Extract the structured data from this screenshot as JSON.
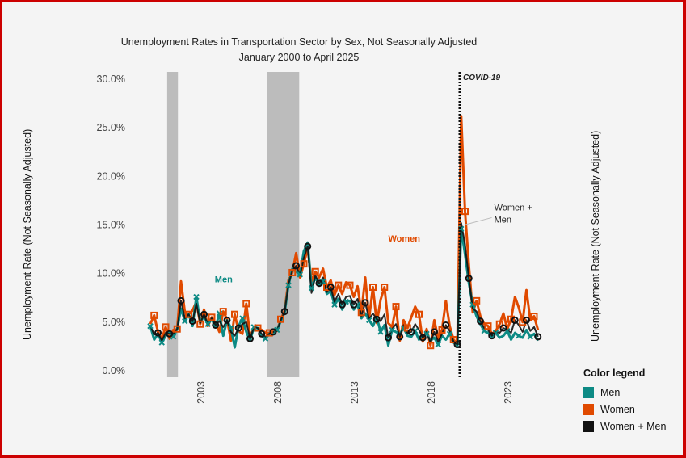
{
  "chart_data": {
    "type": "line",
    "title": "Unemployment Rates in Transportation Sector by Sex, Not Seasonally Adjusted",
    "subtitle": "January 2000 to April 2025",
    "xlabel": "",
    "ylabel": "Unemployment Rate (Not Seasonally Adjusted)",
    "ylabel_right": "Unemployment Rate (Not Seasonally Adjusted)",
    "ylim": [
      0,
      30
    ],
    "xlim": [
      2000,
      2025.33
    ],
    "y_ticks": [
      "0.0%",
      "5.0%",
      "10.0%",
      "15.0%",
      "20.0%",
      "25.0%",
      "30.0%"
    ],
    "y_tick_values": [
      0,
      5,
      10,
      15,
      20,
      25,
      30
    ],
    "x_ticks": [
      "2003",
      "2008",
      "2013",
      "2018",
      "2023"
    ],
    "x_tick_values": [
      2003,
      2008,
      2013,
      2018,
      2023
    ],
    "grid": false,
    "legend_title": "Color legend",
    "legend_position": "bottom-right",
    "recessions": [
      {
        "start": 2001.1,
        "end": 2001.8
      },
      {
        "start": 2007.6,
        "end": 2009.7
      }
    ],
    "annotations": [
      {
        "text": "COVID-19",
        "x": 2020.0,
        "type": "vertical-dotted-line"
      },
      {
        "text": "Men",
        "x": 2004.2,
        "y": 9.1,
        "color": "#0d8a84"
      },
      {
        "text": "Women",
        "x": 2015.5,
        "y": 13.3,
        "color": "#e04a00"
      },
      {
        "text": "Women +\nMen",
        "x": 2022.4,
        "y": 16.5,
        "color": "#222222",
        "pointer_to": {
          "x": 2020.3,
          "y": 15.2
        }
      }
    ],
    "x": [
      2000.0,
      2000.25,
      2000.5,
      2000.75,
      2001.0,
      2001.25,
      2001.5,
      2001.75,
      2002.0,
      2002.25,
      2002.5,
      2002.75,
      2003.0,
      2003.25,
      2003.5,
      2003.75,
      2004.0,
      2004.25,
      2004.5,
      2004.75,
      2005.0,
      2005.25,
      2005.5,
      2005.75,
      2006.0,
      2006.25,
      2006.5,
      2006.75,
      2007.0,
      2007.25,
      2007.5,
      2007.75,
      2008.0,
      2008.25,
      2008.5,
      2008.75,
      2009.0,
      2009.25,
      2009.5,
      2009.75,
      2010.0,
      2010.25,
      2010.5,
      2010.75,
      2011.0,
      2011.25,
      2011.5,
      2011.75,
      2012.0,
      2012.25,
      2012.5,
      2012.75,
      2013.0,
      2013.25,
      2013.5,
      2013.75,
      2014.0,
      2014.25,
      2014.5,
      2014.75,
      2015.0,
      2015.25,
      2015.5,
      2015.75,
      2016.0,
      2016.25,
      2016.5,
      2016.75,
      2017.0,
      2017.25,
      2017.5,
      2017.75,
      2018.0,
      2018.25,
      2018.5,
      2018.75,
      2019.0,
      2019.25,
      2019.5,
      2019.75,
      2020.0,
      2020.25,
      2020.5,
      2020.75,
      2021.0,
      2021.25,
      2021.5,
      2021.75,
      2022.0,
      2022.25,
      2022.5,
      2022.75,
      2023.0,
      2023.25,
      2023.5,
      2023.75,
      2024.0,
      2024.25,
      2024.5,
      2024.75,
      2025.0,
      2025.25
    ],
    "series": [
      {
        "name": "Men",
        "color": "#0d8a84",
        "values": [
          4.6,
          3.2,
          3.8,
          2.9,
          3.6,
          4.1,
          3.5,
          4.3,
          6.4,
          5.1,
          5.8,
          4.6,
          7.6,
          5.0,
          5.6,
          4.8,
          5.3,
          4.5,
          5.9,
          3.6,
          5.2,
          4.4,
          2.4,
          4.6,
          5.4,
          4.0,
          3.1,
          4.5,
          4.4,
          3.6,
          3.3,
          3.8,
          3.9,
          4.2,
          5.1,
          6.0,
          8.8,
          10.5,
          10.2,
          9.9,
          12.3,
          13.2,
          8.5,
          9.6,
          8.8,
          9.2,
          7.9,
          8.2,
          6.8,
          7.4,
          6.3,
          7.1,
          7.2,
          6.3,
          6.8,
          5.4,
          5.9,
          5.2,
          4.6,
          5.5,
          4.0,
          4.7,
          2.6,
          4.2,
          4.0,
          3.8,
          4.4,
          3.6,
          3.5,
          4.1,
          3.2,
          3.6,
          3.8,
          3.1,
          3.4,
          2.7,
          3.6,
          3.2,
          3.8,
          2.9,
          2.6,
          14.6,
          12.0,
          9.0,
          6.8,
          5.6,
          4.8,
          4.1,
          3.9,
          3.5,
          3.9,
          3.4,
          3.6,
          4.1,
          3.2,
          3.9,
          3.6,
          3.4,
          4.2,
          3.5,
          3.8,
          3.1
        ]
      },
      {
        "name": "Women",
        "color": "#e04a00",
        "values": [
          4.8,
          5.7,
          4.0,
          3.3,
          4.5,
          3.3,
          4.2,
          4.3,
          9.2,
          6.0,
          5.8,
          6.2,
          7.1,
          4.8,
          6.3,
          4.6,
          5.5,
          4.9,
          4.0,
          6.1,
          5.3,
          3.1,
          5.8,
          4.1,
          3.8,
          6.9,
          3.5,
          4.4,
          4.4,
          4.2,
          3.9,
          3.9,
          4.0,
          4.1,
          5.3,
          6.2,
          9.3,
          10.1,
          12.1,
          9.6,
          11.0,
          12.6,
          9.2,
          10.2,
          9.6,
          10.5,
          8.6,
          9.3,
          7.8,
          8.8,
          7.9,
          9.1,
          8.8,
          7.6,
          8.7,
          6.0,
          9.6,
          5.4,
          8.6,
          4.9,
          7.3,
          8.6,
          4.9,
          4.5,
          6.6,
          3.1,
          5.2,
          4.4,
          5.5,
          6.6,
          5.8,
          3.0,
          4.3,
          2.6,
          5.2,
          3.3,
          4.2,
          7.2,
          4.6,
          3.2,
          2.7,
          26.2,
          16.4,
          10.8,
          6.0,
          7.2,
          5.6,
          4.8,
          4.6,
          3.8,
          4.1,
          4.8,
          5.9,
          4.3,
          5.3,
          7.6,
          6.5,
          5.0,
          8.3,
          5.2,
          5.6,
          4.2
        ]
      },
      {
        "name": "Women + Men",
        "color": "#111111",
        "values": [
          4.7,
          3.7,
          3.9,
          3.1,
          3.9,
          3.8,
          3.8,
          4.3,
          7.2,
          5.4,
          5.8,
          5.1,
          6.9,
          4.9,
          5.8,
          4.7,
          5.4,
          4.7,
          5.1,
          4.5,
          5.2,
          4.0,
          3.6,
          4.4,
          4.8,
          5.0,
          3.3,
          4.5,
          4.4,
          3.8,
          3.5,
          3.8,
          4.0,
          4.1,
          5.2,
          6.1,
          8.9,
          10.3,
          10.8,
          9.8,
          11.6,
          12.8,
          8.0,
          9.8,
          9.0,
          9.6,
          8.1,
          8.6,
          7.1,
          7.9,
          6.8,
          7.6,
          7.7,
          6.8,
          7.4,
          5.6,
          7.0,
          5.3,
          5.9,
          5.3,
          5.1,
          5.8,
          3.4,
          4.3,
          4.8,
          3.5,
          4.7,
          3.9,
          4.0,
          4.8,
          4.2,
          3.4,
          4.0,
          2.9,
          4.0,
          3.0,
          3.8,
          4.7,
          4.1,
          3.0,
          2.7,
          15.2,
          13.0,
          9.5,
          6.4,
          6.1,
          5.1,
          4.4,
          4.2,
          3.6,
          4.0,
          3.9,
          4.4,
          4.2,
          3.9,
          5.2,
          4.7,
          4.0,
          5.2,
          4.1,
          4.5,
          3.5
        ]
      }
    ]
  }
}
